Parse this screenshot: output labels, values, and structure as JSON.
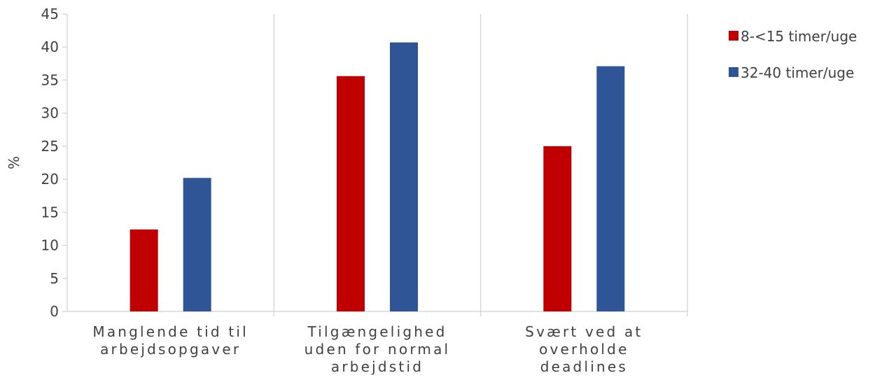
{
  "chart_data": {
    "type": "bar",
    "ylabel": "%",
    "ylim": [
      0,
      45
    ],
    "yticks": [
      "0",
      "5",
      "10",
      "15",
      "20",
      "25",
      "30",
      "35",
      "40",
      "45"
    ],
    "categories": [
      [
        "Manglende tid til",
        "arbejdsopgaver"
      ],
      [
        "Tilgængelighed",
        "uden for normal",
        "arbejdstid"
      ],
      [
        "Svært ved at",
        "overholde",
        "deadlines"
      ]
    ],
    "series": [
      {
        "name": "8-<15 timer/uge",
        "color": "#C00000",
        "values": [
          12.4,
          35.6,
          25.0
        ]
      },
      {
        "name": "32-40 timer/uge",
        "color": "#2F5597",
        "values": [
          20.2,
          40.7,
          37.1
        ]
      }
    ],
    "legend_position": "right",
    "grid": false
  }
}
